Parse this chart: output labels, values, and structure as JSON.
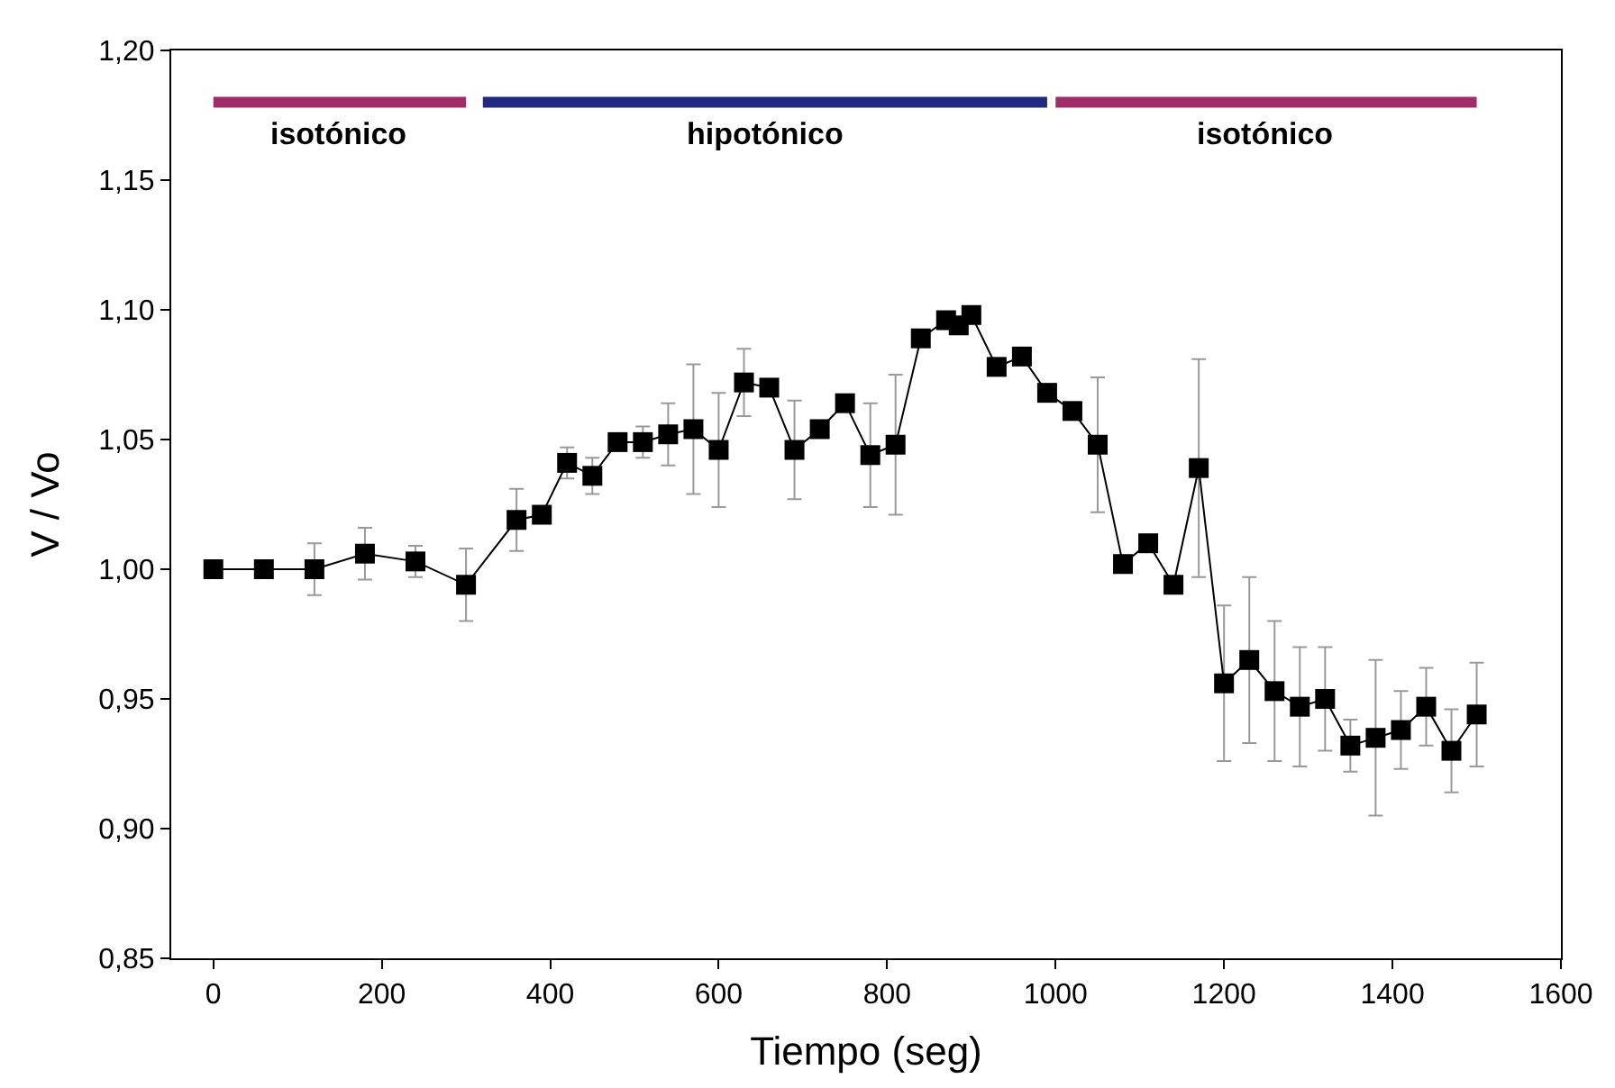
{
  "chart_data": {
    "type": "line",
    "xlabel": "Tiempo (seg)",
    "ylabel": "V / Vo",
    "xlim": [
      -50,
      1600
    ],
    "xticks": [
      0,
      200,
      400,
      600,
      800,
      1000,
      1200,
      1400,
      1600
    ],
    "ylim": [
      0.85,
      1.2
    ],
    "yticks": [
      {
        "value": 0.85,
        "label": "0,85"
      },
      {
        "value": 0.9,
        "label": "0,90"
      },
      {
        "value": 0.95,
        "label": "0,95"
      },
      {
        "value": 1.0,
        "label": "1,00"
      },
      {
        "value": 1.05,
        "label": "1,05"
      },
      {
        "value": 1.1,
        "label": "1,10"
      },
      {
        "value": 1.15,
        "label": "1,15"
      },
      {
        "value": 1.2,
        "label": "1,20"
      }
    ],
    "series": [
      {
        "name": "isotónico",
        "color": "#a02c6a",
        "marker": "none",
        "x": [
          0,
          300
        ],
        "values": [
          1.18,
          1.18
        ]
      },
      {
        "name": "hipotónico",
        "color": "#1f2a80",
        "marker": "none",
        "x": [
          320,
          990
        ],
        "values": [
          1.18,
          1.18
        ]
      },
      {
        "name": "isotónico",
        "color": "#a02c6a",
        "marker": "none",
        "x": [
          1000,
          1500
        ],
        "values": [
          1.18,
          1.18
        ]
      },
      {
        "color": "#000000",
        "marker": "square",
        "line_style": "solid",
        "x": [
          0,
          60,
          120,
          180,
          240,
          300,
          360,
          390,
          420,
          450,
          480,
          510,
          540,
          570,
          600,
          630,
          660,
          690,
          720,
          750,
          780,
          810,
          840,
          870,
          885,
          900,
          930,
          960,
          990,
          1020,
          1050,
          1080,
          1110,
          1140,
          1170,
          1200,
          1230,
          1260,
          1290,
          1320,
          1350,
          1380,
          1410,
          1440,
          1470,
          1500
        ],
        "values": [
          1.0,
          1.0,
          1.0,
          1.006,
          1.003,
          0.994,
          1.019,
          1.021,
          1.041,
          1.036,
          1.049,
          1.049,
          1.052,
          1.054,
          1.046,
          1.072,
          1.07,
          1.046,
          1.054,
          1.064,
          1.044,
          1.048,
          1.089,
          1.096,
          1.094,
          1.098,
          1.078,
          1.082,
          1.068,
          1.061,
          1.048,
          1.002,
          1.01,
          0.994,
          1.039,
          0.956,
          0.965,
          0.953,
          0.947,
          0.95,
          0.932,
          0.935,
          0.938,
          0.947,
          0.93,
          0.944
        ],
        "errors": [
          null,
          null,
          0.01,
          0.01,
          0.006,
          0.014,
          0.012,
          null,
          0.006,
          0.007,
          null,
          0.006,
          0.012,
          0.025,
          0.022,
          0.013,
          null,
          0.019,
          null,
          null,
          0.02,
          0.027,
          null,
          null,
          null,
          null,
          null,
          null,
          null,
          null,
          0.026,
          null,
          null,
          null,
          0.042,
          0.03,
          0.032,
          0.027,
          0.023,
          0.02,
          0.01,
          0.03,
          0.015,
          0.015,
          0.016,
          0.02
        ]
      }
    ]
  }
}
